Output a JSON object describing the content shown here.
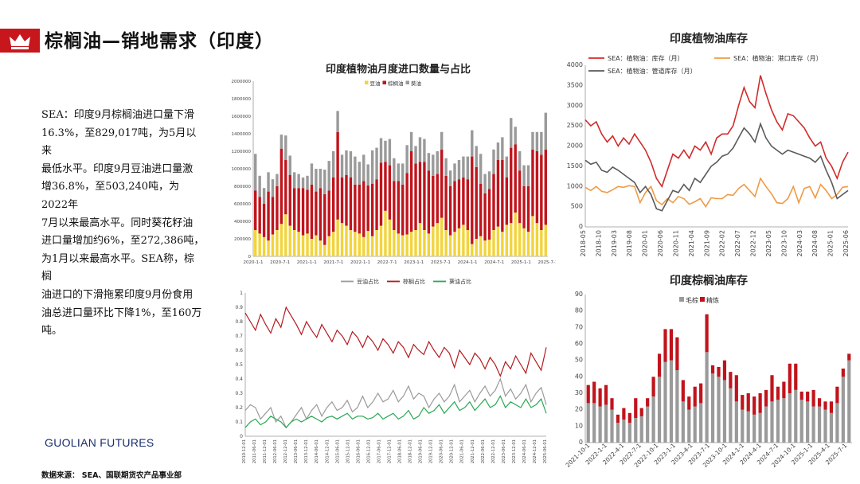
{
  "header": {
    "title": "棕榈油—销地需求（印度）",
    "icon": "crown-icon",
    "accent": "#c8161d"
  },
  "summary": {
    "lines": [
      "SEA：印度9月棕榈油进口量下滑",
      "16.3%，至829,017吨，为5月以来",
      "最低水平。印度9月豆油进口量激",
      "增36.8%，至503,240吨，为2022年",
      "7月以来最高水平。同时葵花籽油",
      "进口量增加约6%，至272,386吨，",
      "为1月以来最高水平。SEA称，棕榈",
      "油进口的下滑拖累印度9月份食用",
      "油总进口量环比下降1%，至160万",
      "吨。"
    ]
  },
  "footer": {
    "logo": "GUOLIAN FUTURES",
    "source": "数据来源：  SEA、国联期货农产品事业部"
  },
  "colors": {
    "soy": "#f2d43c",
    "palm": "#c0141c",
    "sun": "#9a9a9a",
    "soyRatio": "#9a9a9a",
    "palmRatio": "#b4191e",
    "sunRatio": "#2aa852",
    "stock": "#d02b2b",
    "port": "#ef9a47",
    "pipe": "#5a5a5a",
    "crude": "#9a9a9a",
    "refined": "#c0141c"
  },
  "chart_data": [
    {
      "id": "imports",
      "type": "bar",
      "stacked": true,
      "title": "印度植物油月度进口数量与占比",
      "legend": [
        "豆油",
        "棕榈油",
        "葵油"
      ],
      "ylim": [
        0,
        2000000
      ],
      "yticks": [
        "0",
        "200000",
        "400000",
        "600000",
        "800000",
        "1000000",
        "1200000",
        "1400000",
        "1600000",
        "1800000",
        "2000000"
      ],
      "xticks": [
        "2020-1-1",
        "2020-7-1",
        "2021-1-1",
        "2021-7-1",
        "2022-1-1",
        "2022-7-1",
        "2023-1-1",
        "2023-7-1",
        "2024-1-1",
        "2024-7-1",
        "2025-1-1",
        "2025-7-1"
      ],
      "soy": [
        300000,
        260000,
        220000,
        180000,
        250000,
        300000,
        370000,
        480000,
        350000,
        300000,
        280000,
        240000,
        260000,
        200000,
        240000,
        180000,
        130000,
        230000,
        280000,
        420000,
        380000,
        350000,
        300000,
        280000,
        260000,
        220000,
        290000,
        230000,
        300000,
        350000,
        520000,
        420000,
        300000,
        260000,
        240000,
        250000,
        280000,
        300000,
        380000,
        300000,
        260000,
        340000,
        380000,
        440000,
        300000,
        240000,
        280000,
        320000,
        360000,
        300000,
        140000,
        200000,
        230000,
        180000,
        190000,
        300000,
        340000,
        280000,
        360000,
        380000,
        500000,
        380000,
        320000,
        280000,
        460000,
        380000,
        300000,
        360000
      ],
      "palm": [
        450000,
        420000,
        380000,
        560000,
        430000,
        500000,
        860000,
        620000,
        580000,
        480000,
        500000,
        540000,
        500000,
        620000,
        500000,
        600000,
        580000,
        520000,
        620000,
        1000000,
        520000,
        580000,
        600000,
        540000,
        560000,
        640000,
        520000,
        600000,
        580000,
        720000,
        560000,
        620000,
        560000,
        600000,
        580000,
        700000,
        920000,
        760000,
        700000,
        780000,
        720000,
        580000,
        560000,
        780000,
        620000,
        560000,
        580000,
        560000,
        540000,
        580000,
        1000000,
        820000,
        600000,
        540000,
        580000,
        640000,
        760000,
        820000,
        540000,
        860000,
        780000,
        600000,
        480000,
        520000,
        760000,
        820000,
        860000,
        860000
      ],
      "sun": [
        420000,
        240000,
        180000,
        220000,
        200000,
        140000,
        160000,
        280000,
        220000,
        180000,
        160000,
        120000,
        160000,
        240000,
        260000,
        220000,
        280000,
        340000,
        300000,
        240000,
        260000,
        280000,
        300000,
        320000,
        260000,
        300000,
        240000,
        380000,
        360000,
        280000,
        240000,
        300000,
        260000,
        200000,
        240000,
        320000,
        220000,
        200000,
        280000,
        260000,
        200000,
        240000,
        260000,
        200000,
        200000,
        180000,
        200000,
        220000,
        240000,
        260000,
        300000,
        240000,
        340000,
        220000,
        200000,
        280000,
        200000,
        260000,
        240000,
        340000,
        200000,
        220000,
        240000,
        240000,
        200000,
        220000,
        260000,
        420000
      ]
    },
    {
      "id": "ratios",
      "type": "line",
      "legend": [
        "豆油占比",
        "棕榈占比",
        "葵油占比"
      ],
      "ylim": [
        0,
        1
      ],
      "yticks": [
        "0",
        "0.1",
        "0.2",
        "0.3",
        "0.4",
        "0.5",
        "0.6",
        "0.7",
        "0.8",
        "0.9",
        "1"
      ],
      "xticks": [
        "2010-12-01",
        "2011-06-01",
        "2011-12-01",
        "2012-06-01",
        "2012-12-01",
        "2013-06-01",
        "2013-12-01",
        "2014-06-01",
        "2014-12-01",
        "2015-06-01",
        "2015-12-01",
        "2016-06-01",
        "2016-12-01",
        "2017-06-01",
        "2017-12-01",
        "2018-06-01",
        "2018-12-01",
        "2019-06-01",
        "2019-12-01",
        "2020-06-01",
        "2020-12-01",
        "2021-06-01",
        "2021-12-01",
        "2022-06-01",
        "2022-12-01",
        "2023-06-01",
        "2023-12-01",
        "2024-06-01",
        "2024-12-01",
        "2025-06-01"
      ],
      "palmRatio": [
        0.86,
        0.8,
        0.74,
        0.85,
        0.78,
        0.72,
        0.82,
        0.76,
        0.9,
        0.84,
        0.78,
        0.71,
        0.8,
        0.74,
        0.69,
        0.78,
        0.72,
        0.66,
        0.74,
        0.7,
        0.64,
        0.73,
        0.69,
        0.62,
        0.7,
        0.66,
        0.6,
        0.68,
        0.64,
        0.58,
        0.66,
        0.62,
        0.55,
        0.64,
        0.6,
        0.57,
        0.66,
        0.6,
        0.55,
        0.62,
        0.58,
        0.48,
        0.6,
        0.55,
        0.5,
        0.58,
        0.54,
        0.47,
        0.55,
        0.5,
        0.42,
        0.52,
        0.47,
        0.56,
        0.5,
        0.44,
        0.58,
        0.52,
        0.46,
        0.62
      ],
      "soyRatio": [
        0.18,
        0.22,
        0.2,
        0.12,
        0.16,
        0.2,
        0.1,
        0.14,
        0.06,
        0.1,
        0.15,
        0.2,
        0.12,
        0.18,
        0.22,
        0.14,
        0.2,
        0.24,
        0.18,
        0.2,
        0.25,
        0.17,
        0.2,
        0.28,
        0.2,
        0.24,
        0.3,
        0.24,
        0.26,
        0.32,
        0.24,
        0.28,
        0.35,
        0.26,
        0.3,
        0.28,
        0.2,
        0.26,
        0.3,
        0.24,
        0.28,
        0.36,
        0.24,
        0.28,
        0.32,
        0.24,
        0.3,
        0.35,
        0.28,
        0.32,
        0.4,
        0.28,
        0.33,
        0.26,
        0.3,
        0.36,
        0.24,
        0.3,
        0.34,
        0.22
      ],
      "sunRatio": [
        0.06,
        0.1,
        0.12,
        0.08,
        0.1,
        0.14,
        0.12,
        0.1,
        0.06,
        0.1,
        0.12,
        0.1,
        0.12,
        0.14,
        0.12,
        0.1,
        0.13,
        0.14,
        0.12,
        0.14,
        0.16,
        0.12,
        0.14,
        0.14,
        0.12,
        0.13,
        0.16,
        0.12,
        0.14,
        0.16,
        0.12,
        0.14,
        0.18,
        0.12,
        0.14,
        0.2,
        0.16,
        0.18,
        0.22,
        0.16,
        0.2,
        0.24,
        0.18,
        0.2,
        0.24,
        0.18,
        0.22,
        0.26,
        0.2,
        0.22,
        0.28,
        0.2,
        0.24,
        0.22,
        0.2,
        0.26,
        0.2,
        0.22,
        0.26,
        0.16
      ]
    },
    {
      "id": "veg-stock",
      "type": "line",
      "title": "印度植物油库存",
      "legend": [
        "SEA：植物油：库存（月）",
        "SEA：植物油：港口库存（月）",
        "SEA：植物油：管道库存（月）"
      ],
      "ylim": [
        0,
        4000
      ],
      "yticks": [
        "0",
        "500",
        "1000",
        "1500",
        "2000",
        "2500",
        "3000",
        "3500",
        "4000"
      ],
      "xticks": [
        "2018-05",
        "2018-10",
        "2019-03",
        "2019-08",
        "2020-01",
        "2020-06",
        "2020-11",
        "2021-04",
        "2021-09",
        "2022-02",
        "2022-07",
        "2022-12",
        "2023-05",
        "2023-10",
        "2024-03",
        "2024-08",
        "2025-01",
        "2025-06"
      ],
      "stock": [
        2650,
        2500,
        2600,
        2300,
        2100,
        2250,
        2000,
        2200,
        2050,
        2300,
        2100,
        1900,
        1600,
        1200,
        1000,
        1400,
        1800,
        1700,
        1900,
        1700,
        2000,
        1900,
        2100,
        1800,
        2200,
        2300,
        2300,
        2500,
        3000,
        3450,
        3100,
        2950,
        3750,
        3300,
        2900,
        2600,
        2400,
        2800,
        2750,
        2600,
        2450,
        2200,
        2000,
        2100,
        1700,
        1500,
        1200,
        1600,
        1850
      ],
      "port": [
        980,
        900,
        1000,
        880,
        850,
        920,
        1000,
        980,
        1020,
        1000,
        600,
        850,
        1000,
        650,
        550,
        700,
        600,
        750,
        700,
        560,
        620,
        700,
        500,
        720,
        700,
        700,
        800,
        780,
        950,
        1050,
        900,
        750,
        1200,
        1000,
        820,
        600,
        580,
        700,
        1000,
        600,
        950,
        1000,
        720,
        1050,
        900,
        700,
        800,
        980,
        1000
      ],
      "pipe": [
        1650,
        1550,
        1600,
        1400,
        1350,
        1480,
        1400,
        1300,
        1200,
        1100,
        850,
        1000,
        800,
        450,
        400,
        650,
        900,
        850,
        1050,
        900,
        1200,
        1100,
        1300,
        1500,
        1600,
        1750,
        1800,
        1950,
        2200,
        2450,
        2300,
        2100,
        2550,
        2200,
        2000,
        1900,
        1800,
        1900,
        1850,
        1800,
        1750,
        1700,
        1600,
        1750,
        1400,
        1100,
        700,
        800,
        900
      ]
    },
    {
      "id": "palm-stock",
      "type": "bar",
      "stacked": true,
      "title": "印度棕榈油库存",
      "legend": [
        "毛棕",
        "精炼"
      ],
      "ylim": [
        0,
        90
      ],
      "yticks": [
        "0",
        "10",
        "20",
        "30",
        "40",
        "50",
        "60",
        "70",
        "80",
        "90"
      ],
      "xticks": [
        "2021-10-1",
        "2022-1-1",
        "2022-4-1",
        "2022-7-1",
        "2022-10-1",
        "2023-1-1",
        "2023-4-1",
        "2023-7-1",
        "2023-10-1",
        "2024-1-1",
        "2024-4-1",
        "2024-7-1",
        "2024-10-1",
        "2025-1-1",
        "2025-4-1",
        "2025-7-1"
      ],
      "crude": [
        24,
        24,
        22,
        23,
        20,
        12,
        14,
        12,
        15,
        16,
        22,
        28,
        40,
        49,
        50,
        44,
        25,
        20,
        22,
        24,
        55,
        42,
        40,
        38,
        33,
        25,
        20,
        19,
        17,
        18,
        22,
        25,
        26,
        27,
        30,
        32,
        26,
        25,
        22,
        22,
        20,
        18,
        24,
        40,
        50
      ],
      "refined": [
        11,
        13,
        11,
        12,
        7,
        5,
        7,
        6,
        12,
        5,
        5,
        12,
        14,
        20,
        19,
        20,
        13,
        8,
        12,
        12,
        23,
        5,
        6,
        12,
        10,
        16,
        9,
        11,
        11,
        12,
        10,
        16,
        8,
        10,
        18,
        16,
        5,
        6,
        10,
        5,
        5,
        7,
        10,
        5,
        4
      ]
    }
  ]
}
